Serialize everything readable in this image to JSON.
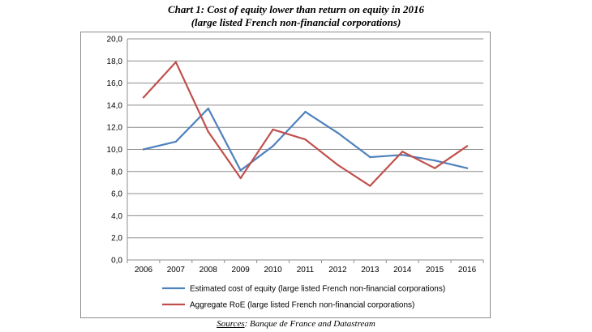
{
  "header": {
    "title": "Chart 1: Cost of equity lower than return on equity in 2016",
    "subtitle": "(large listed French non-financial corporations)"
  },
  "footer": {
    "source_label": "Sources",
    "source_text": ": Banque de France and Datastream"
  },
  "chart_data": {
    "type": "line",
    "title": "Chart 1: Cost of equity lower than return on equity in 2016",
    "subtitle": "(large listed French non-financial corporations)",
    "x": [
      "2006",
      "2007",
      "2008",
      "2009",
      "2010",
      "2011",
      "2012",
      "2013",
      "2014",
      "2015",
      "2016"
    ],
    "y_ticks": [
      "0,0",
      "2,0",
      "4,0",
      "6,0",
      "8,0",
      "10,0",
      "12,0",
      "14,0",
      "16,0",
      "18,0",
      "20,0"
    ],
    "ylim": [
      0,
      20
    ],
    "grid": "horizontal",
    "legend_position": "bottom",
    "series": [
      {
        "name": "Estimated cost of equity (large listed French non-financial corporations)",
        "color": "#4f81bd",
        "values": [
          10.0,
          10.7,
          13.7,
          8.1,
          10.3,
          13.4,
          11.5,
          9.3,
          9.5,
          9.0,
          8.3
        ]
      },
      {
        "name": "Aggregate RoE (large listed French non-financial corporations)",
        "color": "#c0504d",
        "values": [
          14.7,
          17.9,
          11.6,
          7.4,
          11.8,
          10.9,
          8.6,
          6.7,
          9.8,
          8.3,
          10.3
        ]
      }
    ]
  }
}
